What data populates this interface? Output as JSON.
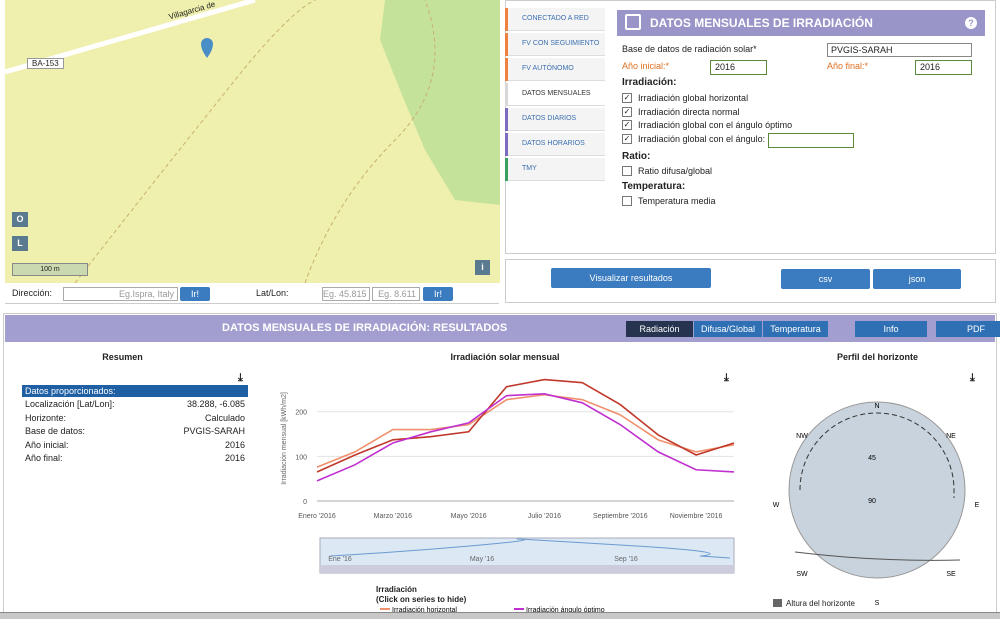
{
  "map": {
    "road_name": "Villagarcia de",
    "road_code": "BA-153",
    "scale": "100 m",
    "zoom_buttons": [
      "O",
      "L"
    ],
    "info_button": "i"
  },
  "search": {
    "address_label": "Dirección:",
    "address_placeholder": "Eg.Ispra, Italy",
    "go": "Ir!",
    "latlon_label": "Lat/Lon:",
    "lat_placeholder": "Eg. 45.815",
    "lon_placeholder": "Eg. 8.611",
    "go2": "Ir!"
  },
  "tabs": [
    {
      "label": "CONECTADO A RED",
      "color": "#f08040"
    },
    {
      "label": "FV CON SEGUIMIENTO",
      "color": "#f08040"
    },
    {
      "label": "FV AUTÓNOMO",
      "color": "#f08040"
    },
    {
      "label": "DATOS MENSUALES",
      "color": "#d8d8d8"
    },
    {
      "label": "DATOS DIARIOS",
      "color": "#7d6bc0"
    },
    {
      "label": "DATOS HORARIOS",
      "color": "#7d6bc0"
    },
    {
      "label": "TMY",
      "color": "#3aa060"
    }
  ],
  "form": {
    "title": "DATOS MENSUALES DE IRRADIACIÓN",
    "help": "?",
    "db_label": "Base de datos de radiación solar*",
    "db_value": "PVGIS-SARAH",
    "start_label": "Año inicial:*",
    "start_value": "2016",
    "end_label": "Año final:*",
    "end_value": "2016",
    "irradiation_heading": "Irradiación:",
    "irradiation": [
      {
        "label": "Irradiación global horizontal",
        "checked": true
      },
      {
        "label": "Irradiación directa normal",
        "checked": true
      },
      {
        "label": "Irradiación global con el ángulo óptimo",
        "checked": true
      },
      {
        "label": "Irradiación global con el ángulo:",
        "checked": true
      }
    ],
    "ratio_heading": "Ratio:",
    "ratio": [
      {
        "label": "Ratio difusa/global",
        "checked": false
      }
    ],
    "temp_heading": "Temperatura:",
    "temp": [
      {
        "label": "Temperatura media",
        "checked": false
      }
    ]
  },
  "actions": {
    "visualize": "Visualizar resultados",
    "csv": "csv",
    "json": "json"
  },
  "results": {
    "title": "DATOS MENSUALES DE IRRADIACIÓN: RESULTADOS",
    "buttons": [
      "Radiación",
      "Difusa/Global",
      "Temperatura",
      "Info",
      "PDF"
    ]
  },
  "summary": {
    "title": "Resumen",
    "header": "Datos proporcionados:",
    "rows": [
      [
        "Localización [Lat/Lon]:",
        "38.288, -6.085"
      ],
      [
        "Horizonte:",
        "Calculado"
      ],
      [
        "Base de datos:",
        "PVGIS-SARAH"
      ],
      [
        "Año inicial:",
        "2016"
      ],
      [
        "Año final:",
        "2016"
      ]
    ]
  },
  "chart_data": {
    "type": "line",
    "title": "Irradiación solar mensual",
    "y_label": "Irradiación mensual [kWh/m2]",
    "categories": [
      "Enero '2016",
      null,
      "Marzo '2016",
      null,
      "Mayo '2016",
      null,
      "Julio '2016",
      null,
      "Septiembre '2016",
      null,
      "Noviembre '2016",
      null
    ],
    "series": [
      {
        "name": "Irradiación horizontal",
        "color": "#f0906c",
        "values": [
          76,
          110,
          160,
          160,
          171,
          227,
          238,
          227,
          193,
          137,
          110,
          126
        ]
      },
      {
        "color": "#c0392b",
        "values": [
          65,
          103,
          137,
          144,
          155,
          256,
          272,
          265,
          216,
          148,
          103,
          130
        ]
      },
      {
        "name": "Irradiación ángulo óptimo",
        "color": "#c030d0",
        "values": [
          45,
          81,
          130,
          155,
          175,
          236,
          240,
          220,
          171,
          110,
          70,
          65
        ]
      }
    ],
    "ylim": [
      0,
      280
    ],
    "yticks": [
      0,
      100,
      200
    ],
    "grid": true,
    "legend_title": "Irradiación",
    "legend_hint": "(Click on series to hide)",
    "navigator_labels": [
      "Ene '16",
      "May '16",
      "Sep '16"
    ]
  },
  "horizon": {
    "title": "Perfil del horizonte",
    "directions": [
      "N",
      "NE",
      "E",
      "SE",
      "S",
      "SW",
      "W",
      "NW"
    ],
    "rings": [
      "45",
      "90"
    ],
    "legend": "Altura del horizonte"
  }
}
